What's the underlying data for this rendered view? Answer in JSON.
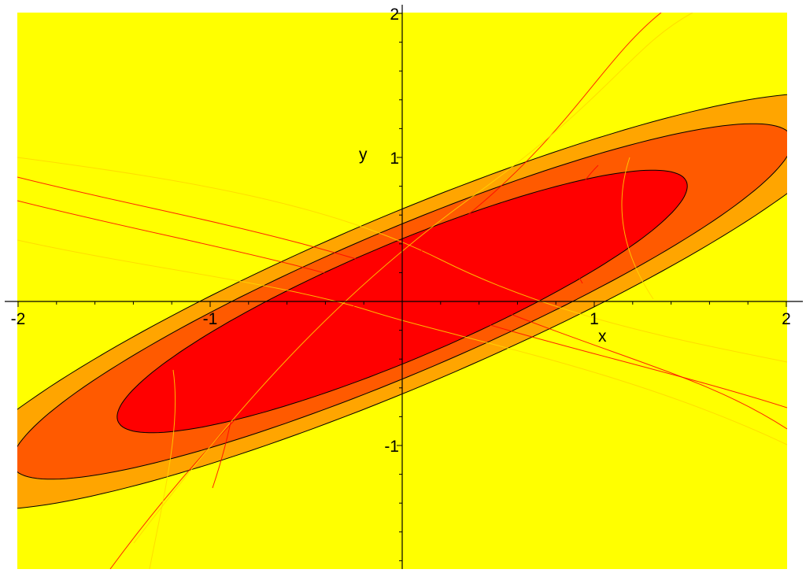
{
  "chart_data": {
    "type": "contour",
    "title": "",
    "xlabel": "x",
    "ylabel": "y",
    "xlim": [
      -2,
      2
    ],
    "ylim": [
      -1.9,
      2.0
    ],
    "x_ticks": [
      -2,
      -1,
      1,
      2
    ],
    "y_ticks": [
      -1,
      1,
      2
    ],
    "x_tick_labels": [
      "-2",
      "-1",
      "1",
      "2"
    ],
    "y_tick_labels": [
      "-1",
      "1",
      "2"
    ],
    "grid": false,
    "contour_levels": [
      {
        "name": "",
        "color": "#FFA500",
        "center": [
          0,
          0
        ],
        "a": 2.72,
        "b": 0.56,
        "angle_deg": 30
      },
      {
        "name": "",
        "color": "#FF5A00",
        "center": [
          0,
          0
        ],
        "a": 2.33,
        "b": 0.47,
        "angle_deg": 30
      },
      {
        "name": "",
        "color": "#FF0000",
        "center": [
          0,
          0
        ],
        "a": 1.7,
        "b": 0.38,
        "angle_deg": 30
      }
    ],
    "background_color": "#FFFF00",
    "contour_line_color": "#000000",
    "field_line_colors": [
      "#FF0000",
      "#FFD700"
    ]
  },
  "axis_labels": {
    "x": "x",
    "y": "y"
  }
}
